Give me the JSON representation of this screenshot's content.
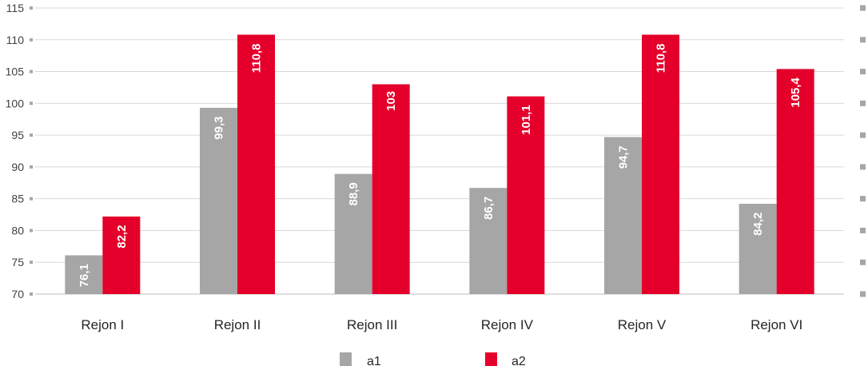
{
  "chart_data": {
    "type": "bar",
    "categories": [
      "Rejon I",
      "Rejon II",
      "Rejon III",
      "Rejon IV",
      "Rejon V",
      "Rejon VI"
    ],
    "series": [
      {
        "name": "a1",
        "color": "#a6a6a6",
        "values": [
          76.1,
          99.3,
          88.9,
          86.7,
          94.7,
          84.2
        ],
        "labels": [
          "76,1",
          "99,3",
          "88,9",
          "86,7",
          "94,7",
          "84,2"
        ]
      },
      {
        "name": "a2",
        "color": "#e4002b",
        "values": [
          82.2,
          110.8,
          103,
          101.1,
          110.8,
          105.4
        ],
        "labels": [
          "82,2",
          "110,8",
          "103",
          "101,1",
          "110,8",
          "105,4"
        ]
      }
    ],
    "ylim": [
      70,
      115
    ],
    "yticks": [
      "70",
      "75",
      "80",
      "85",
      "90",
      "95",
      "100",
      "105",
      "110",
      "115"
    ],
    "grid": true,
    "legend_position": "bottom"
  }
}
